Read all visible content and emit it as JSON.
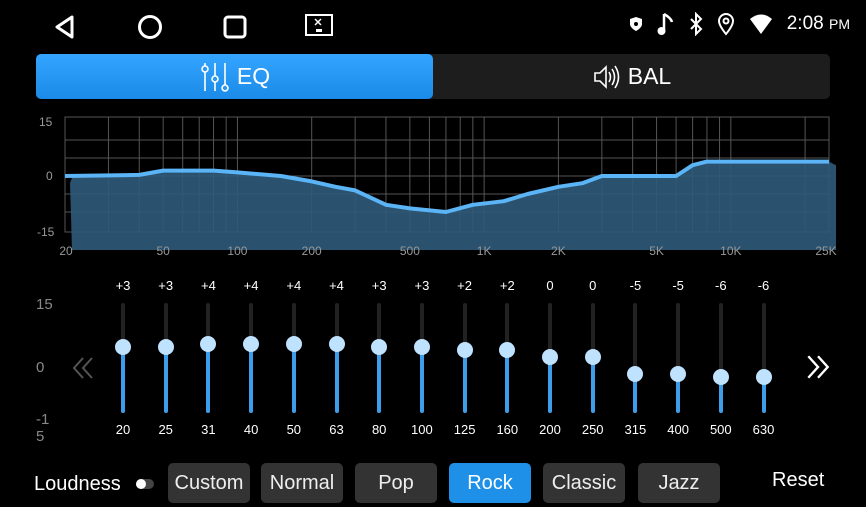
{
  "status": {
    "time": "2:08",
    "ampm": "PM"
  },
  "tabs": [
    {
      "label": "EQ",
      "active": true
    },
    {
      "label": "BAL",
      "active": false
    }
  ],
  "chart_data": {
    "type": "area",
    "yticks": [
      "15",
      "0",
      "-15"
    ],
    "ylim": [
      -15,
      15
    ],
    "xscale": "log",
    "xlim": [
      20,
      25000
    ],
    "xticks": [
      {
        "v": 20,
        "label": "20"
      },
      {
        "v": 50,
        "label": "50"
      },
      {
        "v": 100,
        "label": "100"
      },
      {
        "v": 200,
        "label": "200"
      },
      {
        "v": 500,
        "label": "500"
      },
      {
        "v": 1000,
        "label": "1K"
      },
      {
        "v": 2000,
        "label": "2K"
      },
      {
        "v": 5000,
        "label": "5K"
      },
      {
        "v": 10000,
        "label": "10K"
      },
      {
        "v": 25000,
        "label": "25K"
      }
    ],
    "grid": true,
    "x": [
      20,
      40,
      50,
      80,
      100,
      150,
      200,
      250,
      300,
      400,
      500,
      700,
      900,
      1200,
      1500,
      2000,
      2500,
      3000,
      6000,
      7000,
      8000,
      25000
    ],
    "y": [
      0,
      0.3,
      1.5,
      1.5,
      1,
      0,
      -1.5,
      -3,
      -4,
      -8,
      -9,
      -10,
      -8,
      -7,
      -5,
      -3,
      -2,
      0,
      0,
      3,
      4,
      4
    ],
    "color": "#5ab4f5"
  },
  "scale": {
    "top": "15",
    "mid": "0",
    "bottom": "-1\n5"
  },
  "bands": [
    {
      "freq": "20",
      "value": "+3",
      "v": 3
    },
    {
      "freq": "25",
      "value": "+3",
      "v": 3
    },
    {
      "freq": "31",
      "value": "+4",
      "v": 4
    },
    {
      "freq": "40",
      "value": "+4",
      "v": 4
    },
    {
      "freq": "50",
      "value": "+4",
      "v": 4
    },
    {
      "freq": "63",
      "value": "+4",
      "v": 4
    },
    {
      "freq": "80",
      "value": "+3",
      "v": 3
    },
    {
      "freq": "100",
      "value": "+3",
      "v": 3
    },
    {
      "freq": "125",
      "value": "+2",
      "v": 2
    },
    {
      "freq": "160",
      "value": "+2",
      "v": 2
    },
    {
      "freq": "200",
      "value": "0",
      "v": 0
    },
    {
      "freq": "250",
      "value": "0",
      "v": 0
    },
    {
      "freq": "315",
      "value": "-5",
      "v": -5
    },
    {
      "freq": "400",
      "value": "-5",
      "v": -5
    },
    {
      "freq": "500",
      "value": "-6",
      "v": -6
    },
    {
      "freq": "630",
      "value": "-6",
      "v": -6
    }
  ],
  "loudness": {
    "label": "Loudness",
    "on": false
  },
  "presets": [
    {
      "label": "Custom"
    },
    {
      "label": "Normal"
    },
    {
      "label": "Pop"
    },
    {
      "label": "Rock",
      "active": true
    },
    {
      "label": "Classic"
    },
    {
      "label": "Jazz"
    }
  ],
  "reset": "Reset",
  "accent": "#2296f3"
}
